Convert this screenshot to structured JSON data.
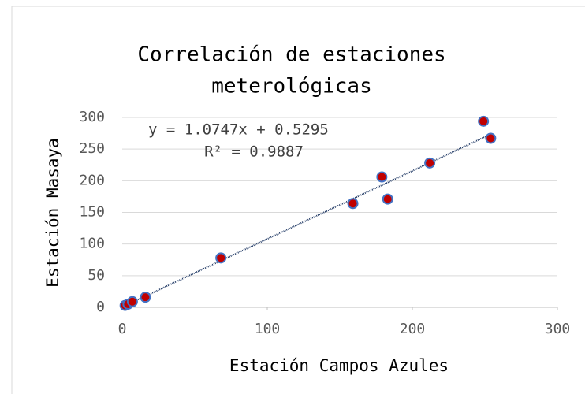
{
  "chart_data": {
    "type": "scatter",
    "title": [
      "Correlación de estaciones",
      "meterológicas"
    ],
    "xlabel": "Estación Campos Azules",
    "ylabel": "Estación Masaya",
    "x": [
      2,
      4,
      7,
      16,
      68,
      159,
      179,
      183,
      212,
      249,
      254
    ],
    "values": [
      3,
      5,
      9,
      16,
      78,
      164,
      206,
      171,
      228,
      294,
      267
    ],
    "color": "#c00000",
    "edgecolor": "#4472c4",
    "trendline": {
      "slope": 1.0747,
      "intercept": 0.5295,
      "color": "#1f3864",
      "equation": "y = 1.0747x + 0.5295",
      "r2": "R² = 0.9887"
    },
    "xlim": [
      0,
      300
    ],
    "xticks": [
      0,
      100,
      200,
      300
    ],
    "ylim": [
      0,
      300
    ],
    "yticks": [
      0,
      50,
      100,
      150,
      200,
      250,
      300
    ],
    "grid": true
  }
}
